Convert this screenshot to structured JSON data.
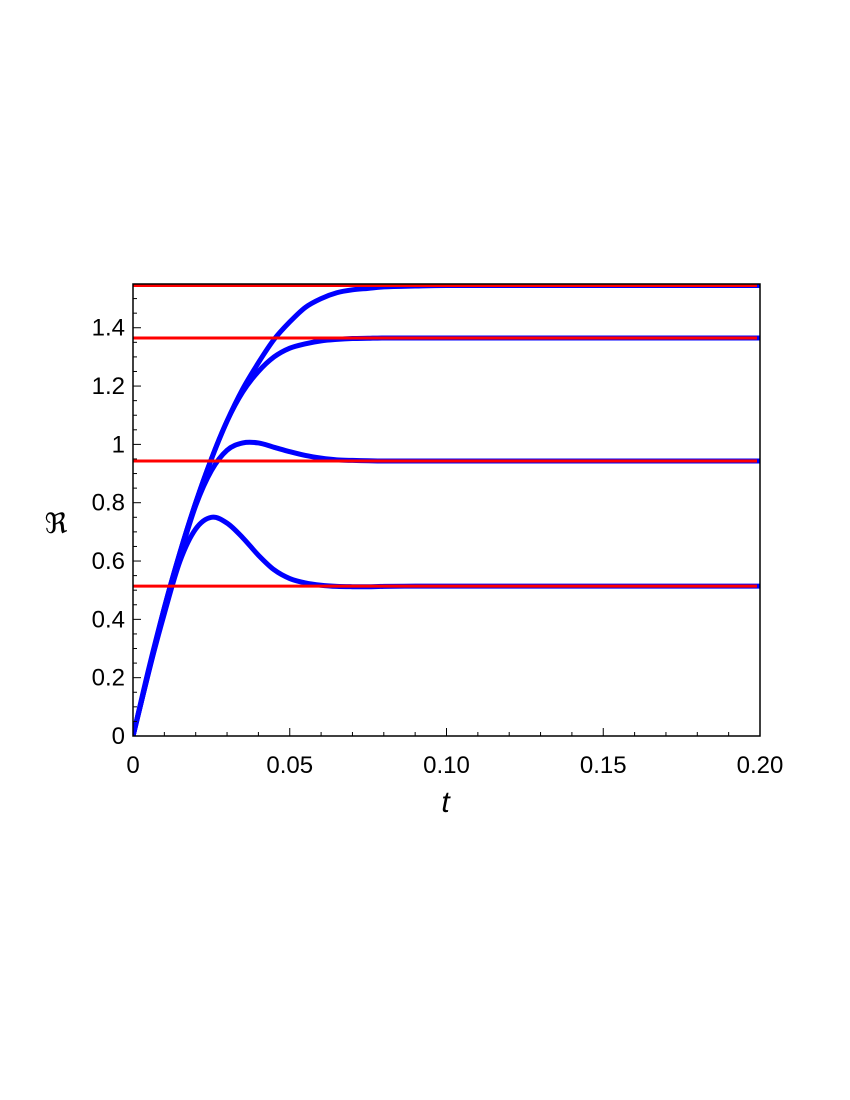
{
  "chart_data": {
    "type": "line",
    "title": "",
    "xlabel": "t",
    "ylabel": "ℜ",
    "xlim": [
      0,
      0.2
    ],
    "ylim": [
      0,
      1.55
    ],
    "grid": false,
    "legend": "none",
    "x_ticks": [
      {
        "value": 0,
        "label": "0"
      },
      {
        "value": 0.05,
        "label": "0.05"
      },
      {
        "value": 0.1,
        "label": "0.10"
      },
      {
        "value": 0.15,
        "label": "0.15"
      },
      {
        "value": 0.2,
        "label": "0.20"
      }
    ],
    "y_ticks": [
      {
        "value": 0,
        "label": "0"
      },
      {
        "value": 0.2,
        "label": "0.2"
      },
      {
        "value": 0.4,
        "label": "0.4"
      },
      {
        "value": 0.6,
        "label": "0.6"
      },
      {
        "value": 0.8,
        "label": "0.8"
      },
      {
        "value": 1.0,
        "label": "1"
      },
      {
        "value": 1.2,
        "label": "1.2"
      },
      {
        "value": 1.4,
        "label": "1.4"
      }
    ],
    "series": [
      {
        "color": "#0000ff",
        "x": [
          0,
          0.005,
          0.01,
          0.015,
          0.02,
          0.025,
          0.03,
          0.035,
          0.04,
          0.045,
          0.05,
          0.055,
          0.06,
          0.065,
          0.07,
          0.075,
          0.08,
          0.09,
          0.1,
          0.12,
          0.15,
          0.2
        ],
        "y": [
          0,
          0.23,
          0.44,
          0.63,
          0.8,
          0.95,
          1.08,
          1.19,
          1.28,
          1.36,
          1.42,
          1.47,
          1.5,
          1.52,
          1.53,
          1.535,
          1.54,
          1.543,
          1.545,
          1.545,
          1.545,
          1.545
        ]
      },
      {
        "color": "#0000ff",
        "x": [
          0,
          0.005,
          0.01,
          0.015,
          0.02,
          0.025,
          0.03,
          0.035,
          0.04,
          0.045,
          0.05,
          0.055,
          0.06,
          0.065,
          0.07,
          0.075,
          0.08,
          0.09,
          0.1,
          0.12,
          0.15,
          0.2
        ],
        "y": [
          0,
          0.22,
          0.44,
          0.63,
          0.8,
          0.95,
          1.08,
          1.18,
          1.25,
          1.3,
          1.33,
          1.345,
          1.355,
          1.36,
          1.363,
          1.364,
          1.365,
          1.365,
          1.365,
          1.365,
          1.365,
          1.365
        ]
      },
      {
        "color": "#0000ff",
        "x": [
          0,
          0.005,
          0.01,
          0.015,
          0.02,
          0.025,
          0.03,
          0.035,
          0.04,
          0.045,
          0.05,
          0.055,
          0.06,
          0.065,
          0.07,
          0.075,
          0.08,
          0.09,
          0.1,
          0.12,
          0.15,
          0.2
        ],
        "y": [
          0,
          0.22,
          0.43,
          0.62,
          0.79,
          0.91,
          0.98,
          1.005,
          1.005,
          0.99,
          0.975,
          0.962,
          0.953,
          0.947,
          0.945,
          0.944,
          0.943,
          0.943,
          0.943,
          0.943,
          0.943,
          0.943
        ]
      },
      {
        "color": "#0000ff",
        "x": [
          0,
          0.005,
          0.01,
          0.015,
          0.02,
          0.025,
          0.03,
          0.035,
          0.04,
          0.045,
          0.05,
          0.055,
          0.06,
          0.065,
          0.07,
          0.075,
          0.08,
          0.09,
          0.1,
          0.12,
          0.15,
          0.2
        ],
        "y": [
          0,
          0.22,
          0.42,
          0.6,
          0.71,
          0.75,
          0.73,
          0.68,
          0.62,
          0.57,
          0.54,
          0.525,
          0.517,
          0.513,
          0.512,
          0.512,
          0.513,
          0.514,
          0.514,
          0.514,
          0.514,
          0.514
        ]
      }
    ],
    "reference_lines": [
      {
        "y": 1.545,
        "color": "#ff0000"
      },
      {
        "y": 1.365,
        "color": "#ff0000"
      },
      {
        "y": 0.943,
        "color": "#ff0000"
      },
      {
        "y": 0.514,
        "color": "#ff0000"
      }
    ]
  }
}
